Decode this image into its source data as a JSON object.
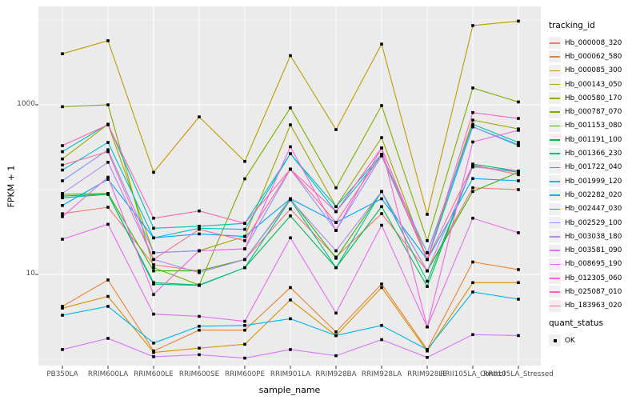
{
  "figure": {
    "panel_background": "#EBEBEB",
    "grid_color": "#FFFFFF",
    "axis_text_color": "#4D4D4D",
    "tick_color": "#333333",
    "point_color": "#000000",
    "legend_key_background": "#F0F0F0"
  },
  "y_axis": {
    "label": "FPKM + 1",
    "tick_labels": [
      "1000",
      "10"
    ]
  },
  "x_axis": {
    "label": "sample_name"
  },
  "legend": {
    "tracking_title": "tracking_id",
    "quant_title": "quant_status",
    "quant_items": [
      {
        "label": "OK",
        "symbol": "black-square"
      }
    ]
  },
  "chart_data": {
    "type": "line",
    "title": "",
    "xlabel": "sample_name",
    "ylabel": "FPKM + 1",
    "y_scale": "log10",
    "y_breaks": [
      10,
      1000
    ],
    "y_minor_breaks": [
      1,
      100,
      10000
    ],
    "ylim": [
      0.85,
      16000
    ],
    "grid": true,
    "legend_position": "right",
    "point_marker": "black-square",
    "x": [
      "PB350LA",
      "RRIM600LA",
      "RRIM600LE",
      "RRIM600SE",
      "RRIM600PE",
      "RRIM901LA",
      "RRIM928BA",
      "RRIM928LA",
      "RRIM928LE",
      "RRII105LA_Control",
      "RRII105LA_Stressed"
    ],
    "series": [
      {
        "name": "Hb_000008_320",
        "color": "#F8766D",
        "values": [
          52,
          62,
          13,
          11,
          15,
          59,
          16,
          52,
          11,
          105,
          100
        ]
      },
      {
        "name": "Hb_000062_580",
        "color": "#EA8331",
        "values": [
          4.2,
          8.6,
          1.25,
          2.2,
          2.2,
          7,
          2.1,
          7.7,
          1.3,
          14,
          11.4
        ]
      },
      {
        "name": "Hb_000085_300",
        "color": "#D89000",
        "values": [
          4.0,
          5.5,
          1.2,
          1.35,
          1.5,
          5,
          1.9,
          7,
          1.25,
          8,
          8
        ]
      },
      {
        "name": "Hb_000143_050",
        "color": "#C09B00",
        "values": [
          4000,
          5700,
          160,
          720,
          215,
          3800,
          510,
          5200,
          51,
          8600,
          9700
        ]
      },
      {
        "name": "Hb_000580_170",
        "color": "#A3A500",
        "values": [
          230,
          590,
          18,
          19,
          28,
          580,
          63,
          410,
          15,
          660,
          520
        ]
      },
      {
        "name": "Hb_000787_070",
        "color": "#7CAE00",
        "values": [
          950,
          1000,
          12,
          7.5,
          134,
          920,
          105,
          980,
          25,
          1580,
          1080
        ]
      },
      {
        "name": "Hb_001153_080",
        "color": "#39B600",
        "values": [
          88,
          90,
          11,
          11,
          15,
          78,
          15.5,
          95,
          11,
          95,
          160
        ]
      },
      {
        "name": "Hb_001191_100",
        "color": "#00BB4E",
        "values": [
          84,
          88,
          8,
          7.5,
          12,
          49,
          12,
          63,
          7.2,
          200,
          165
        ]
      },
      {
        "name": "Hb_001366_230",
        "color": "#00C087",
        "values": [
          80,
          88,
          7.7,
          7.4,
          12,
          76,
          12,
          95,
          8.3,
          190,
          160
        ]
      },
      {
        "name": "Hb_001722_040",
        "color": "#00C0B2",
        "values": [
          280,
          590,
          35,
          37,
          40,
          265,
          63,
          260,
          18,
          590,
          360
        ]
      },
      {
        "name": "Hb_001999_120",
        "color": "#00BDD2",
        "values": [
          170,
          360,
          27,
          35,
          34,
          265,
          55,
          250,
          15,
          550,
          330
        ]
      },
      {
        "name": "Hb_002282_020",
        "color": "#00B4EF",
        "values": [
          3.3,
          4.2,
          1.55,
          2.45,
          2.5,
          3,
          1.9,
          2.5,
          1.3,
          6.2,
          5.1
        ]
      },
      {
        "name": "Hb_002447_030",
        "color": "#00A6FF",
        "values": [
          65,
          132,
          27,
          30,
          28,
          78,
          41,
          78,
          15,
          135,
          127
        ]
      },
      {
        "name": "Hb_002529_100",
        "color": "#8B93FF",
        "values": [
          127,
          295,
          18,
          19,
          20,
          174,
          33,
          250,
          18,
          550,
          340
        ]
      },
      {
        "name": "Hb_003038_180",
        "color": "#B385FF",
        "values": [
          90,
          210,
          15,
          10.5,
          15,
          76,
          19,
          95,
          11,
          185,
          165
        ]
      },
      {
        "name": "Hb_003581_090",
        "color": "#D874FD",
        "values": [
          1.3,
          1.76,
          1.07,
          1.13,
          1.03,
          1.3,
          1.1,
          1.7,
          1.05,
          1.95,
          1.9
        ]
      },
      {
        "name": "Hb_008695_190",
        "color": "#E76BF3",
        "values": [
          26,
          39,
          3.4,
          3.2,
          2.8,
          27,
          3.5,
          38,
          2.4,
          46,
          31
        ]
      },
      {
        "name": "Hb_012305_060",
        "color": "#F763E0",
        "values": [
          48,
          140,
          5.8,
          19,
          20,
          320,
          33,
          310,
          2.4,
          365,
          500
        ]
      },
      {
        "name": "Hb_025087_010",
        "color": "#FF62BC",
        "values": [
          330,
          580,
          46,
          56,
          40,
          174,
          55,
          310,
          15,
          810,
          690
        ]
      },
      {
        "name": "Hb_183963_020",
        "color": "#FF6A98",
        "values": [
          195,
          280,
          15,
          34,
          25,
          174,
          41,
          260,
          15,
          195,
          150
        ]
      }
    ]
  }
}
